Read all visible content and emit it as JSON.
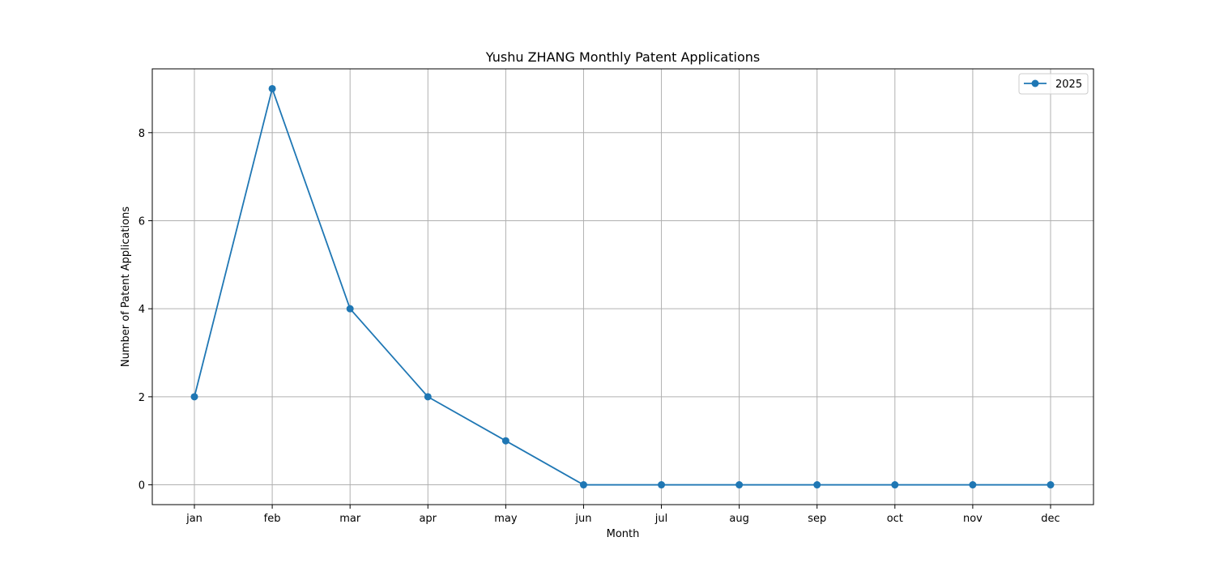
{
  "chart_data": {
    "type": "line",
    "title": "Yushu ZHANG Monthly Patent Applications",
    "xlabel": "Month",
    "ylabel": "Number of Patent Applications",
    "categories": [
      "jan",
      "feb",
      "mar",
      "apr",
      "may",
      "jun",
      "jul",
      "aug",
      "sep",
      "oct",
      "nov",
      "dec"
    ],
    "series": [
      {
        "name": "2025",
        "values": [
          2,
          9,
          4,
          2,
          1,
          0,
          0,
          0,
          0,
          0,
          0,
          0
        ],
        "color": "#1f77b4",
        "marker": "circle"
      }
    ],
    "ylim": [
      -0.45,
      9.45
    ],
    "yticks": [
      0,
      2,
      4,
      6,
      8
    ],
    "grid": true,
    "legend": "top-right"
  }
}
